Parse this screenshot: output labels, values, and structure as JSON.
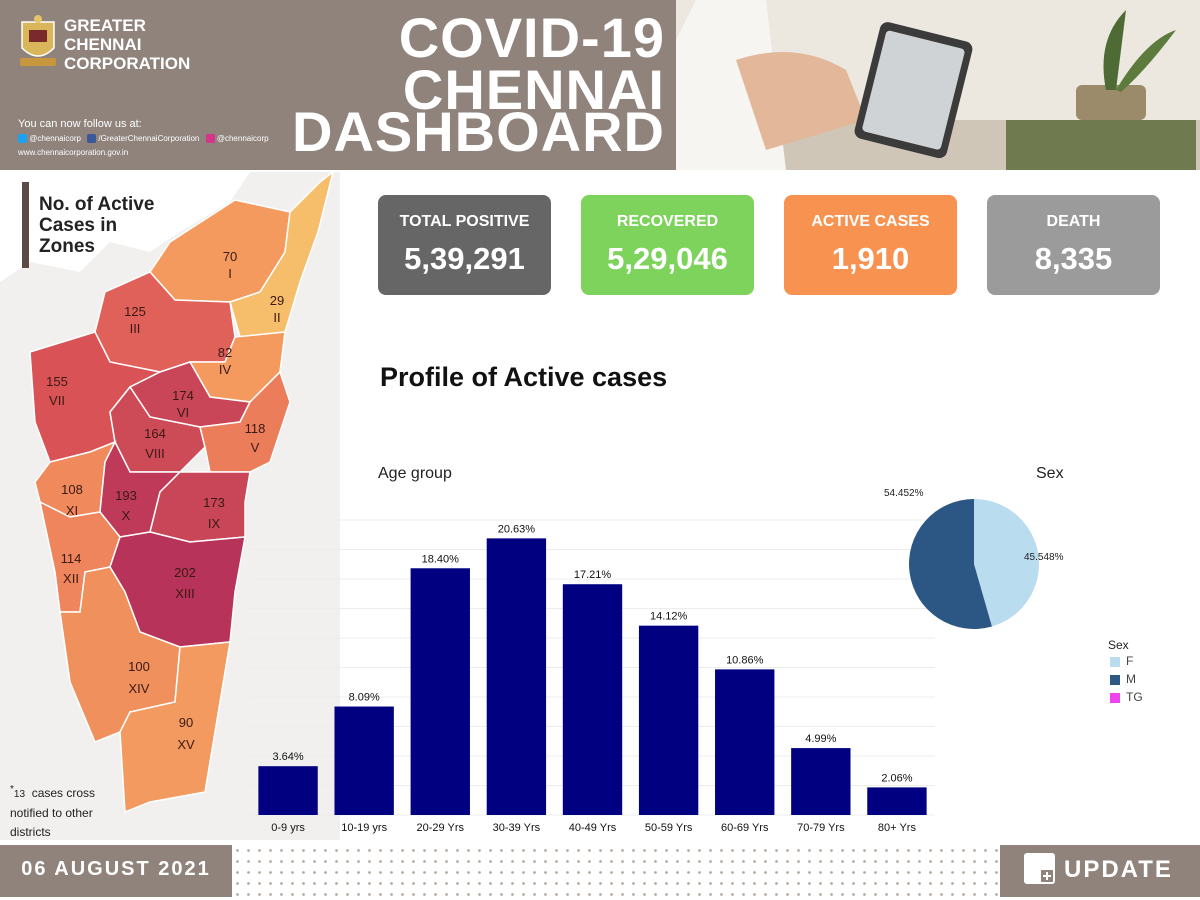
{
  "header": {
    "org_name_line1": "GREATER",
    "org_name_line2": "CHENNAI",
    "org_name_line3": "CORPORATION",
    "follow_text": "You can now follow us at:",
    "twitter": "@chennaicorp",
    "facebook": "/GreaterChennaiCorporation",
    "instagram": "@chennaicorp",
    "website": "www.chennaicorporation.gov.in",
    "title_line1": "COVID-19",
    "title_line2": "CHENNAI",
    "title_line3": "DASHBOARD"
  },
  "stats": [
    {
      "label": "TOTAL POSITIVE",
      "value": "5,39,291",
      "color": "#666666"
    },
    {
      "label": "RECOVERED",
      "value": "5,29,046",
      "color": "#7dd35c"
    },
    {
      "label": "ACTIVE CASES",
      "value": "1,910",
      "color": "#f79250"
    },
    {
      "label": "DEATH",
      "value": "8,335",
      "color": "#9b9b9b"
    }
  ],
  "map": {
    "title_line1": "No. of Active",
    "title_line2": "Cases in",
    "title_line3": "Zones",
    "zones": [
      {
        "count": "29",
        "zone": "II",
        "color": "#f6bd6b"
      },
      {
        "count": "70",
        "zone": "I",
        "color": "#f49a5e"
      },
      {
        "count": "125",
        "zone": "III",
        "color": "#e0605a"
      },
      {
        "count": "82",
        "zone": "IV",
        "color": "#f49a5e"
      },
      {
        "count": "155",
        "zone": "VII",
        "color": "#d95255"
      },
      {
        "count": "174",
        "zone": "VI",
        "color": "#c94658"
      },
      {
        "count": "164",
        "zone": "VIII",
        "color": "#cd4a57"
      },
      {
        "count": "118",
        "zone": "V",
        "color": "#eb7d5b"
      },
      {
        "count": "108",
        "zone": "XI",
        "color": "#f08a5c"
      },
      {
        "count": "193",
        "zone": "X",
        "color": "#be3a58"
      },
      {
        "count": "173",
        "zone": "IX",
        "color": "#c94658"
      },
      {
        "count": "114",
        "zone": "XII",
        "color": "#ee855c"
      },
      {
        "count": "202",
        "zone": "XIII",
        "color": "#b73359"
      },
      {
        "count": "100",
        "zone": "XIV",
        "color": "#f0905d"
      },
      {
        "count": "90",
        "zone": "XV",
        "color": "#f29a5f"
      }
    ],
    "note_count": "13",
    "note_line1": "cases cross",
    "note_line2": "notified to other",
    "note_line3": "districts"
  },
  "profile_title": "Profile of Active cases",
  "footer": {
    "date": "06 AUGUST 2021",
    "update": "UPDATE"
  },
  "chart_data": [
    {
      "type": "bar",
      "title": "Age group",
      "categories": [
        "0-9 yrs",
        "10-19 yrs",
        "20-29 Yrs",
        "30-39 Yrs",
        "40-49 Yrs",
        "50-59 Yrs",
        "60-69 Yrs",
        "70-79 Yrs",
        "80+ Yrs"
      ],
      "values": [
        3.64,
        8.09,
        18.4,
        20.63,
        17.21,
        14.12,
        10.86,
        4.99,
        2.06
      ],
      "value_labels": [
        "3.64%",
        "8.09%",
        "18.40%",
        "20.63%",
        "17.21%",
        "14.12%",
        "10.86%",
        "4.99%",
        "2.06%"
      ],
      "ylim": [
        0,
        22
      ],
      "bar_color": "#000080",
      "grid": true
    },
    {
      "type": "pie",
      "title": "Sex",
      "labels": [
        "F",
        "M",
        "TG"
      ],
      "values": [
        45.548,
        54.452,
        0
      ],
      "value_labels": [
        "45.548%",
        "54.452%",
        ""
      ],
      "colors": [
        "#b9dcef",
        "#2c5784",
        "#ee44ee"
      ],
      "legend_title": "Sex",
      "legend_position": "right"
    }
  ]
}
